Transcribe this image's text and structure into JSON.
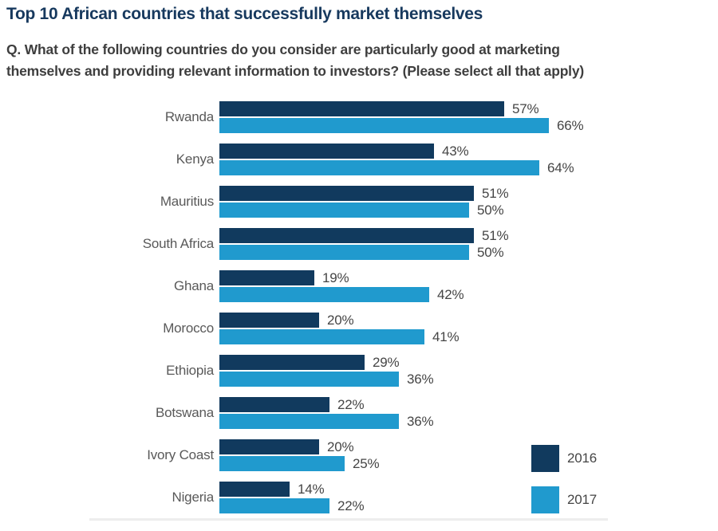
{
  "title": "Top 10 African countries that successfully market themselves",
  "subtitle": {
    "lines": [
      "Q. What of the following countries do you consider are particularly good at marketing",
      "themselves and providing relevant information to investors? (Please select all that apply)"
    ]
  },
  "colors": {
    "title_navy": "#17395e",
    "subtitle_gray": "#3e3e3e",
    "category_label_gray": "#595959",
    "value_label_gray": "#454545",
    "series_2016": "#113a5e",
    "series_2017": "#209ace",
    "divider_gray": "#ededed"
  },
  "chart_data": {
    "type": "bar",
    "orientation": "horizontal",
    "title": "Top 10 African countries that successfully market themselves",
    "categories": [
      "Rwanda",
      "Kenya",
      "Mauritius",
      "South Africa",
      "Ghana",
      "Morocco",
      "Ethiopia",
      "Botswana",
      "Ivory Coast",
      "Nigeria"
    ],
    "series": [
      {
        "name": "2016",
        "color": "#113a5e",
        "values": [
          57,
          43,
          51,
          51,
          19,
          20,
          29,
          22,
          20,
          14
        ]
      },
      {
        "name": "2017",
        "color": "#209ace",
        "values": [
          66,
          64,
          50,
          50,
          42,
          41,
          36,
          36,
          25,
          22
        ]
      }
    ],
    "value_suffix": "%",
    "value_labels": true,
    "axis_ticks": "none",
    "grid": false,
    "xlim": [
      0,
      100
    ],
    "legend_position": "bottom-right"
  }
}
